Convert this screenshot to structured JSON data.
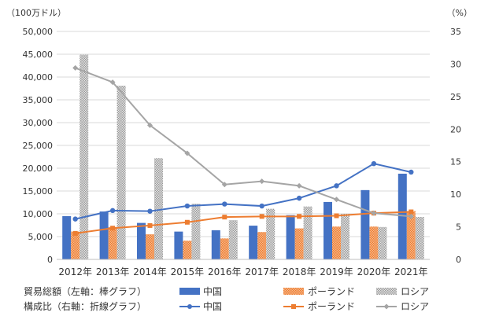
{
  "chart_data": {
    "type": "bar+line",
    "left_axis_unit": "（100万ドル）",
    "right_axis_unit": "（%）",
    "left_ylim": [
      0,
      50000
    ],
    "left_ticks": [
      "0",
      "5,000",
      "10,000",
      "15,000",
      "20,000",
      "25,000",
      "30,000",
      "35,000",
      "40,000",
      "45,000",
      "50,000"
    ],
    "left_tick_values": [
      0,
      5000,
      10000,
      15000,
      20000,
      25000,
      30000,
      35000,
      40000,
      45000,
      50000
    ],
    "right_ylim": [
      0,
      35
    ],
    "right_ticks": [
      "0",
      "5",
      "10",
      "15",
      "20",
      "25",
      "30",
      "35"
    ],
    "right_tick_values": [
      0,
      5,
      10,
      15,
      20,
      25,
      30,
      35
    ],
    "categories": [
      "2012年",
      "2013年",
      "2014年",
      "2015年",
      "2016年",
      "2017年",
      "2018年",
      "2019年",
      "2020年",
      "2021年"
    ],
    "bar_series": [
      {
        "name": "中国",
        "color": "#4472c4",
        "values": [
          9500,
          10500,
          8000,
          6100,
          6400,
          7400,
          9700,
          12600,
          15200,
          18800
        ]
      },
      {
        "name": "ポーランド",
        "color": "#ed7d31",
        "values": [
          6100,
          7100,
          5500,
          4100,
          4600,
          6000,
          6800,
          7200,
          7200,
          10600
        ]
      },
      {
        "name": "ロシア",
        "color": "#a5a5a5",
        "values": [
          44900,
          38100,
          22200,
          12200,
          8600,
          11100,
          11600,
          10000,
          7100,
          9300
        ]
      }
    ],
    "line_series": [
      {
        "name": "中国",
        "color": "#4472c4",
        "values": [
          6.2,
          7.5,
          7.4,
          8.2,
          8.5,
          8.2,
          9.4,
          11.3,
          14.7,
          13.4
        ]
      },
      {
        "name": "ポーランド",
        "color": "#ed7d31",
        "values": [
          4.0,
          4.8,
          5.2,
          5.7,
          6.5,
          6.6,
          6.6,
          6.7,
          7.1,
          7.3
        ]
      },
      {
        "name": "ロシア",
        "color": "#a5a5a5",
        "values": [
          29.4,
          27.2,
          20.6,
          16.3,
          11.5,
          12.0,
          11.3,
          9.2,
          7.1,
          6.6
        ]
      }
    ],
    "legend": {
      "bar_group_label": "貿易総額（左軸：棒グラフ）",
      "line_group_label": "構成比（右軸：折線グラフ）",
      "bar_labels": [
        "中国",
        "ポーランド",
        "ロシア"
      ],
      "line_labels": [
        "中国",
        "ポーランド",
        "ロシア"
      ]
    }
  }
}
